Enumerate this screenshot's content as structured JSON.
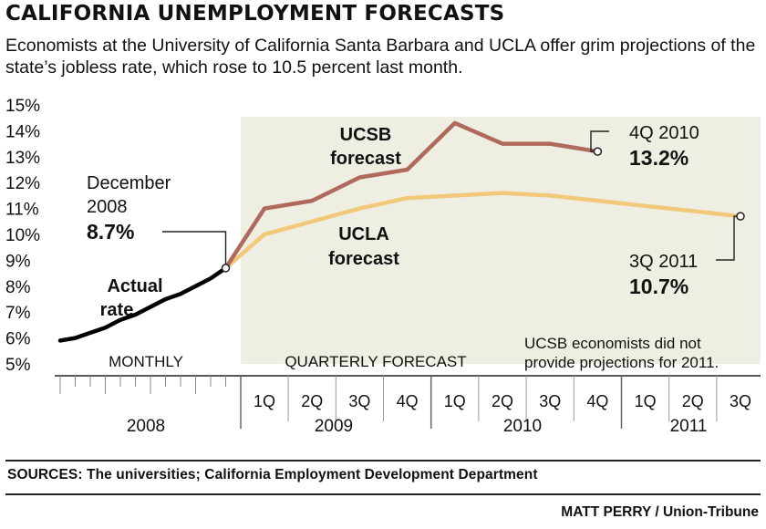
{
  "title": "CALIFORNIA UNEMPLOYMENT FORECASTS",
  "subtitle": "Economists at the University of California Santa Barbara and UCLA offer grim projections of the state’s jobless rate, which rose to 10.5 percent last month.",
  "sources": "SOURCES: The universities; California Employment Development Department",
  "credit": "MATT PERRY / Union-Tribune",
  "colors": {
    "ucsb": "#b06a5c",
    "ucla": "#f2c879",
    "actual": "#000000",
    "forecast_band": "#efeee3"
  },
  "chart_data": {
    "type": "line",
    "ylim": [
      5,
      15
    ],
    "y_ticks": [
      "5%",
      "6%",
      "7%",
      "8%",
      "9%",
      "10%",
      "11%",
      "12%",
      "13%",
      "14%",
      "15%"
    ],
    "x_groups": [
      {
        "label": "2008",
        "ticks": []
      },
      {
        "label": "2009",
        "ticks": [
          "1Q",
          "2Q",
          "3Q",
          "4Q"
        ]
      },
      {
        "label": "2010",
        "ticks": [
          "1Q",
          "2Q",
          "3Q",
          "4Q"
        ]
      },
      {
        "label": "2011",
        "ticks": [
          "1Q",
          "2Q",
          "3Q"
        ]
      }
    ],
    "section_labels": {
      "monthly": "MONTHLY",
      "forecast": "QUARTERLY FORECAST"
    },
    "series": [
      {
        "name": "Actual rate",
        "label_lines": [
          "Actual",
          "rate"
        ],
        "x": [
          "Jan 2008",
          "Feb 2008",
          "Mar 2008",
          "Apr 2008",
          "May 2008",
          "Jun 2008",
          "Jul 2008",
          "Aug 2008",
          "Sep 2008",
          "Oct 2008",
          "Nov 2008",
          "Dec 2008"
        ],
        "values": [
          5.9,
          6.0,
          6.2,
          6.4,
          6.7,
          6.9,
          7.2,
          7.5,
          7.7,
          8.0,
          8.3,
          8.7
        ]
      },
      {
        "name": "UCSB forecast",
        "label_lines": [
          "UCSB",
          "forecast"
        ],
        "x": [
          "Dec 2008",
          "1Q 2009",
          "2Q 2009",
          "3Q 2009",
          "4Q 2009",
          "1Q 2010",
          "2Q 2010",
          "3Q 2010",
          "4Q 2010"
        ],
        "values": [
          8.7,
          11.0,
          11.3,
          12.2,
          12.5,
          14.3,
          13.5,
          13.5,
          13.2
        ]
      },
      {
        "name": "UCLA forecast",
        "label_lines": [
          "UCLA",
          "forecast"
        ],
        "x": [
          "Dec 2008",
          "1Q 2009",
          "2Q 2009",
          "3Q 2009",
          "4Q 2009",
          "1Q 2010",
          "2Q 2010",
          "3Q 2010",
          "4Q 2010",
          "1Q 2011",
          "2Q 2011",
          "3Q 2011"
        ],
        "values": [
          8.7,
          10.0,
          10.5,
          11.0,
          11.4,
          11.5,
          11.6,
          11.5,
          11.3,
          11.1,
          10.9,
          10.7
        ]
      }
    ],
    "annotations": [
      {
        "id": "dec2008",
        "lines": [
          "December",
          "2008"
        ],
        "value": "8.7%"
      },
      {
        "id": "q4-2010",
        "lines": [
          "4Q 2010"
        ],
        "value": "13.2%"
      },
      {
        "id": "q3-2011",
        "lines": [
          "3Q 2011"
        ],
        "value": "10.7%"
      }
    ],
    "note_lines": [
      "UCSB economists did not",
      "provide projections for 2011."
    ]
  }
}
